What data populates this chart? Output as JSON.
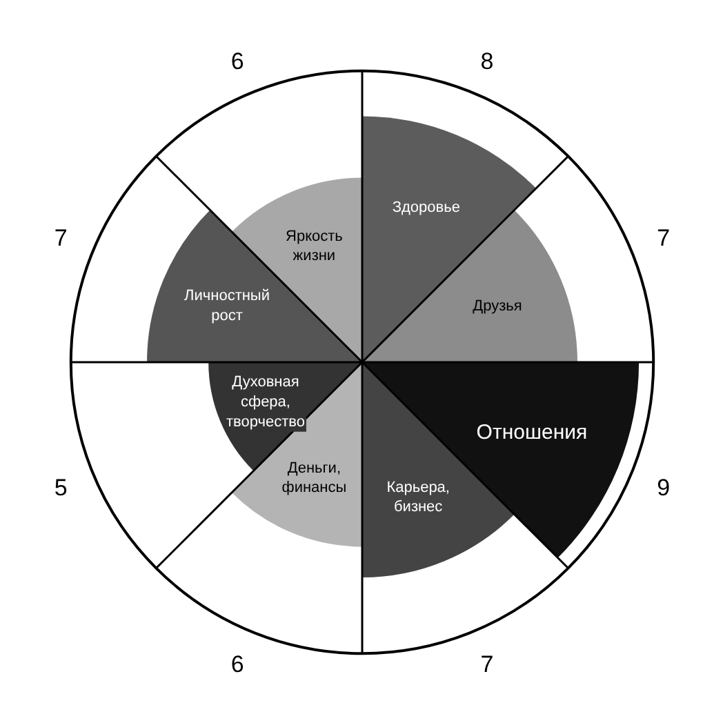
{
  "chart_data": {
    "type": "other",
    "categories": [
      "Здоровье",
      "Друзья",
      "Отношения",
      "Карьера, бизнес",
      "Деньги, финансы",
      "Духовная сфера, творчество",
      "Личностный рост",
      "Яркость жизни"
    ],
    "values": [
      8,
      7,
      9,
      7,
      6,
      5,
      7,
      6
    ],
    "colors": [
      "#5c5c5c",
      "#8c8c8c",
      "#111111",
      "#444444",
      "#b4b4b4",
      "#333333",
      "#555555",
      "#a8a8a8"
    ],
    "data_labels": true
  }
}
